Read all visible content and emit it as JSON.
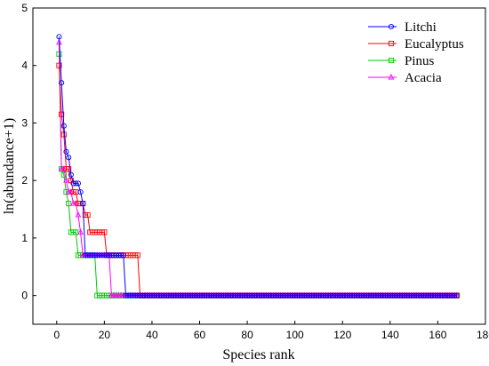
{
  "chart_data": {
    "type": "line",
    "title": "",
    "xlabel": "Species rank",
    "ylabel": "ln(abundance+1)",
    "xlim": [
      -10,
      180
    ],
    "ylim": [
      -0.5,
      5
    ],
    "xticks": [
      0,
      20,
      40,
      60,
      80,
      100,
      120,
      140,
      160,
      180
    ],
    "yticks": [
      0,
      1,
      2,
      3,
      4,
      5
    ],
    "grid": false,
    "legend": "top-right",
    "series": [
      {
        "name": "Litchi",
        "color": "#0000ff",
        "marker": "circle",
        "x_last": 168,
        "points": [
          [
            1,
            4.5
          ],
          [
            2,
            3.7
          ],
          [
            3,
            2.95
          ],
          [
            4,
            2.5
          ],
          [
            5,
            2.4
          ],
          [
            6,
            2.1
          ],
          [
            7,
            1.95
          ],
          [
            8,
            1.95
          ],
          [
            9,
            1.95
          ],
          [
            10,
            1.8
          ],
          [
            11,
            1.6
          ],
          [
            12,
            0.7
          ],
          [
            13,
            0.7
          ],
          [
            14,
            0.7
          ],
          [
            15,
            0.7
          ],
          [
            16,
            0.7
          ],
          [
            17,
            0.7
          ],
          [
            18,
            0.7
          ],
          [
            19,
            0.7
          ],
          [
            20,
            0.7
          ],
          [
            21,
            0.7
          ],
          [
            22,
            0.7
          ],
          [
            23,
            0.7
          ],
          [
            24,
            0.7
          ],
          [
            25,
            0.7
          ],
          [
            26,
            0.7
          ],
          [
            27,
            0.7
          ],
          [
            28,
            0.7
          ],
          [
            29,
            0
          ]
        ]
      },
      {
        "name": "Eucalyptus",
        "color": "#ff0000",
        "marker": "square",
        "x_last": 168,
        "points": [
          [
            1,
            4.0
          ],
          [
            2,
            3.15
          ],
          [
            3,
            2.8
          ],
          [
            4,
            2.2
          ],
          [
            5,
            2.2
          ],
          [
            6,
            2.0
          ],
          [
            7,
            1.8
          ],
          [
            8,
            1.8
          ],
          [
            9,
            1.6
          ],
          [
            10,
            1.6
          ],
          [
            11,
            1.6
          ],
          [
            12,
            1.4
          ],
          [
            13,
            1.4
          ],
          [
            14,
            1.1
          ],
          [
            15,
            1.1
          ],
          [
            16,
            1.1
          ],
          [
            17,
            1.1
          ],
          [
            18,
            1.1
          ],
          [
            19,
            1.1
          ],
          [
            20,
            1.1
          ],
          [
            21,
            0.7
          ],
          [
            22,
            0.7
          ],
          [
            23,
            0.7
          ],
          [
            24,
            0.7
          ],
          [
            25,
            0.7
          ],
          [
            26,
            0.7
          ],
          [
            27,
            0.7
          ],
          [
            28,
            0.7
          ],
          [
            29,
            0.7
          ],
          [
            30,
            0.7
          ],
          [
            31,
            0.7
          ],
          [
            32,
            0.7
          ],
          [
            33,
            0.7
          ],
          [
            34,
            0.7
          ],
          [
            35,
            0
          ]
        ]
      },
      {
        "name": "Pinus",
        "color": "#00c800",
        "marker": "square",
        "x_last": 168,
        "points": [
          [
            1,
            4.2
          ],
          [
            2,
            2.2
          ],
          [
            3,
            2.1
          ],
          [
            4,
            1.8
          ],
          [
            5,
            1.6
          ],
          [
            6,
            1.1
          ],
          [
            7,
            1.1
          ],
          [
            8,
            1.1
          ],
          [
            9,
            0.7
          ],
          [
            10,
            0.7
          ],
          [
            11,
            0.7
          ],
          [
            12,
            0.7
          ],
          [
            13,
            0.7
          ],
          [
            14,
            0.7
          ],
          [
            15,
            0.7
          ],
          [
            16,
            0.7
          ],
          [
            17,
            0
          ]
        ]
      },
      {
        "name": "Acacia",
        "color": "#ff00ff",
        "marker": "triangle",
        "x_last": 168,
        "points": [
          [
            1,
            4.4
          ],
          [
            2,
            2.2
          ],
          [
            3,
            2.2
          ],
          [
            4,
            2.0
          ],
          [
            5,
            1.8
          ],
          [
            6,
            1.8
          ],
          [
            7,
            1.6
          ],
          [
            8,
            1.6
          ],
          [
            9,
            1.4
          ],
          [
            10,
            1.1
          ],
          [
            11,
            0.7
          ],
          [
            12,
            0.7
          ],
          [
            13,
            0.7
          ],
          [
            14,
            0.7
          ],
          [
            15,
            0.7
          ],
          [
            16,
            0.7
          ],
          [
            17,
            0.7
          ],
          [
            18,
            0.7
          ],
          [
            19,
            0.7
          ],
          [
            20,
            0.7
          ],
          [
            21,
            0.7
          ],
          [
            22,
            0.7
          ],
          [
            23,
            0
          ]
        ]
      }
    ]
  }
}
